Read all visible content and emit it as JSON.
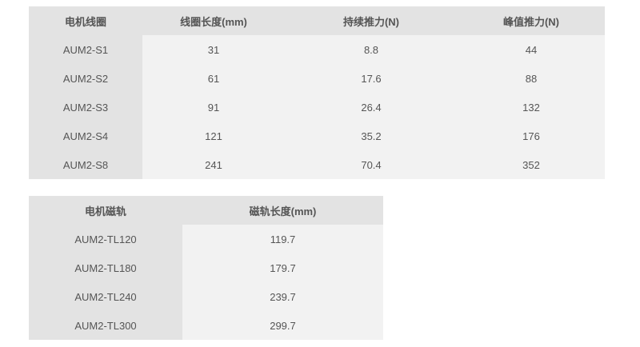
{
  "coil_table": {
    "headers": [
      "电机线圈",
      "线圈长度(mm)",
      "持续推力(N)",
      "峰值推力(N)"
    ],
    "rows": [
      [
        "AUM2-S1",
        "31",
        "8.8",
        "44"
      ],
      [
        "AUM2-S2",
        "61",
        "17.6",
        "88"
      ],
      [
        "AUM2-S3",
        "91",
        "26.4",
        "132"
      ],
      [
        "AUM2-S4",
        "121",
        "35.2",
        "176"
      ],
      [
        "AUM2-S8",
        "241",
        "70.4",
        "352"
      ]
    ]
  },
  "rail_table": {
    "headers": [
      "电机磁轨",
      "磁轨长度(mm)"
    ],
    "rows": [
      [
        "AUM2-TL120",
        "119.7"
      ],
      [
        "AUM2-TL180",
        "179.7"
      ],
      [
        "AUM2-TL240",
        "239.7"
      ],
      [
        "AUM2-TL300",
        "299.7"
      ]
    ]
  }
}
